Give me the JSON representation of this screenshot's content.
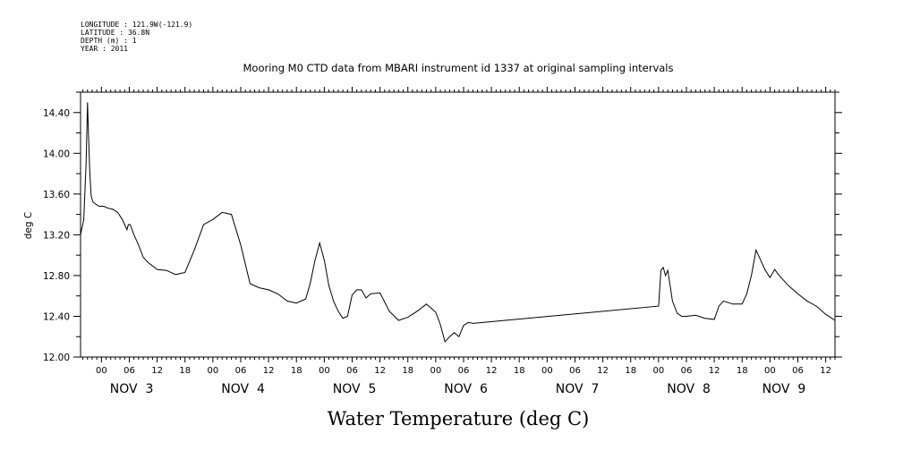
{
  "header": {
    "longitude": "LONGITUDE : 121.9W(-121.9)",
    "latitude": "LATITUDE : 36.8N",
    "depth": "DEPTH (m) : 1",
    "year": "YEAR : 2011"
  },
  "chart_data": {
    "type": "line",
    "title": "Mooring M0 CTD data from MBARI instrument id 1337 at original sampling intervals",
    "xlabel": "Water Temperature (deg C)",
    "ylabel": "deg C",
    "ylim": [
      12.0,
      14.6
    ],
    "xlim_hours": [
      -4.5,
      158.0
    ],
    "yticks": [
      "12.00",
      "12.40",
      "12.80",
      "13.20",
      "13.60",
      "14.00",
      "14.40"
    ],
    "ytick_values": [
      12.0,
      12.4,
      12.8,
      13.2,
      13.6,
      14.0,
      14.4
    ],
    "hour_ticks": [
      "00",
      "06",
      "12",
      "18",
      "00",
      "06",
      "12",
      "18",
      "00",
      "06",
      "12",
      "18",
      "00",
      "06",
      "12",
      "18",
      "00",
      "06",
      "12",
      "18",
      "00",
      "06",
      "12",
      "18",
      "00",
      "06",
      "12"
    ],
    "hour_tick_values": [
      0,
      6,
      12,
      18,
      24,
      30,
      36,
      42,
      48,
      54,
      60,
      66,
      72,
      78,
      84,
      90,
      96,
      102,
      108,
      114,
      120,
      126,
      132,
      138,
      144,
      150,
      156
    ],
    "days": [
      {
        "label": "NOV  3",
        "center_hour": 6.5
      },
      {
        "label": "NOV  4",
        "center_hour": 30.5
      },
      {
        "label": "NOV  5",
        "center_hour": 54.5
      },
      {
        "label": "NOV  6",
        "center_hour": 78.5
      },
      {
        "label": "NOV  7",
        "center_hour": 102.5
      },
      {
        "label": "NOV  8",
        "center_hour": 126.5
      },
      {
        "label": "NOV  9",
        "center_hour": 147.0
      }
    ],
    "grid": false,
    "series": [
      {
        "color": "#000000",
        "x_hours": [
          -4.5,
          -3.8,
          -3.3,
          -3.0,
          -2.8,
          -2.5,
          -2.2,
          -1.8,
          -1.2,
          -0.5,
          0.5,
          1.5,
          2.5,
          3.5,
          4.5,
          5.5,
          5.8,
          6.2,
          7.0,
          8.0,
          9.0,
          10.0,
          12.0,
          14.0,
          16.0,
          18.0,
          20.0,
          22.0,
          24.0,
          26.0,
          28.0,
          30.0,
          32.0,
          34.0,
          36.0,
          38.0,
          40.0,
          42.0,
          44.0,
          45.0,
          46.0,
          47.0,
          48.0,
          49.0,
          50.0,
          51.0,
          52.0,
          53.0,
          54.0,
          55.0,
          56.0,
          57.0,
          58.0,
          60.0,
          62.0,
          64.0,
          66.0,
          68.0,
          70.0,
          72.0,
          73.0,
          74.0,
          75.0,
          76.0,
          77.0,
          78.0,
          79.0,
          80.0,
          120.0,
          120.5,
          121.0,
          121.5,
          122.0,
          122.5,
          123.0,
          124.0,
          125.0,
          126.0,
          128.0,
          130.0,
          132.0,
          133.0,
          134.0,
          136.0,
          138.0,
          139.0,
          140.0,
          141.0,
          142.0,
          143.0,
          144.0,
          145.0,
          146.0,
          148.0,
          150.0,
          152.0,
          154.0,
          156.0,
          158.0
        ],
        "y": [
          13.2,
          13.35,
          13.9,
          14.5,
          14.2,
          13.8,
          13.58,
          13.52,
          13.5,
          13.48,
          13.48,
          13.46,
          13.45,
          13.42,
          13.35,
          13.25,
          13.3,
          13.3,
          13.2,
          13.1,
          12.98,
          12.93,
          12.86,
          12.85,
          12.81,
          12.83,
          13.05,
          13.3,
          13.35,
          13.42,
          13.4,
          13.1,
          12.72,
          12.68,
          12.66,
          12.62,
          12.55,
          12.53,
          12.57,
          12.73,
          12.95,
          13.12,
          12.95,
          12.7,
          12.55,
          12.45,
          12.38,
          12.4,
          12.61,
          12.66,
          12.66,
          12.58,
          12.62,
          12.63,
          12.45,
          12.36,
          12.39,
          12.45,
          12.52,
          12.44,
          12.32,
          12.15,
          12.2,
          12.24,
          12.2,
          12.31,
          12.34,
          12.33,
          12.5,
          12.85,
          12.88,
          12.8,
          12.85,
          12.7,
          12.55,
          12.43,
          12.4,
          12.4,
          12.41,
          12.38,
          12.37,
          12.5,
          12.55,
          12.52,
          12.52,
          12.62,
          12.8,
          13.05,
          12.95,
          12.85,
          12.78,
          12.86,
          12.8,
          12.7,
          12.62,
          12.55,
          12.5,
          12.42,
          12.36
        ]
      }
    ]
  }
}
